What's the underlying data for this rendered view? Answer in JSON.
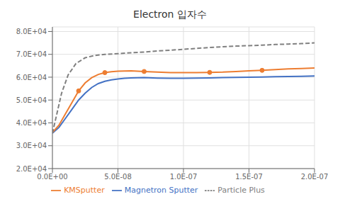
{
  "chart_data": {
    "type": "line",
    "title": "Electron 입자수",
    "xlim": [
      0,
      2e-07
    ],
    "ylim": [
      20000,
      82000
    ],
    "xticks": [
      {
        "value": 0,
        "label": "0.0E+00"
      },
      {
        "value": 5e-08,
        "label": "5.0E-08"
      },
      {
        "value": 1e-07,
        "label": "1.0E-07"
      },
      {
        "value": 1.5e-07,
        "label": "1.5E-07"
      },
      {
        "value": 2e-07,
        "label": "2.0E-07"
      }
    ],
    "yticks": [
      {
        "value": 20000,
        "label": "2.0E+04"
      },
      {
        "value": 30000,
        "label": "3.0E+04"
      },
      {
        "value": 40000,
        "label": "4.0E+04"
      },
      {
        "value": 50000,
        "label": "5.0E+04"
      },
      {
        "value": 60000,
        "label": "6.0E+04"
      },
      {
        "value": 70000,
        "label": "7.0E+04"
      },
      {
        "value": 80000,
        "label": "8.0E+04"
      }
    ],
    "grid": true,
    "legend": "bottom",
    "series": [
      {
        "name": "Magnetron Sputter",
        "color": "#4472c4",
        "line_style": "solid",
        "x": [
          0,
          5e-09,
          1e-08,
          1.5e-08,
          2e-08,
          2.5e-08,
          3e-08,
          3.5e-08,
          4e-08,
          4.5e-08,
          5e-08,
          5.5e-08,
          6e-08,
          7e-08,
          8e-08,
          9e-08,
          1e-07,
          1.1e-07,
          1.2e-07,
          1.3e-07,
          1.4e-07,
          1.5e-07,
          1.6e-07,
          1.7e-07,
          1.8e-07,
          1.9e-07,
          2e-07
        ],
        "values": [
          35500,
          38000,
          42000,
          46000,
          50000,
          53000,
          55500,
          57200,
          58200,
          58800,
          59200,
          59500,
          59700,
          59800,
          59600,
          59500,
          59500,
          59600,
          59700,
          59800,
          59900,
          60000,
          60100,
          60200,
          60300,
          60400,
          60500
        ]
      },
      {
        "name": "KMSputter",
        "color": "#ed7d31",
        "line_style": "solid",
        "marker": "circle",
        "x": [
          0,
          5e-09,
          1e-08,
          1.5e-08,
          2e-08,
          2.5e-08,
          3e-08,
          3.5e-08,
          4e-08,
          4.5e-08,
          5e-08,
          5.5e-08,
          6e-08,
          7e-08,
          8e-08,
          9e-08,
          1e-07,
          1.1e-07,
          1.2e-07,
          1.3e-07,
          1.4e-07,
          1.5e-07,
          1.6e-07,
          1.7e-07,
          1.8e-07,
          1.9e-07,
          2e-07
        ],
        "values": [
          35800,
          39000,
          44000,
          49000,
          54000,
          57500,
          59800,
          61200,
          62000,
          62400,
          62600,
          62700,
          62800,
          62500,
          62200,
          62000,
          62000,
          62000,
          62100,
          62200,
          62500,
          62800,
          63000,
          63300,
          63600,
          63800,
          64000
        ]
      },
      {
        "name": "Particle Plus",
        "color": "#808080",
        "line_style": "dashed",
        "x": [
          0,
          3e-09,
          7e-09,
          1.2e-08,
          1.8e-08,
          2.5e-08,
          3.2e-08,
          4e-08,
          5e-08,
          6e-08,
          7e-08,
          8e-08,
          9e-08,
          1e-07,
          1.1e-07,
          1.2e-07,
          1.3e-07,
          1.4e-07,
          1.5e-07,
          1.6e-07,
          1.7e-07,
          1.8e-07,
          1.9e-07,
          2e-07
        ],
        "values": [
          35500,
          43000,
          53000,
          61000,
          66000,
          68500,
          69500,
          70000,
          70300,
          70700,
          71000,
          71500,
          71800,
          72200,
          72600,
          73000,
          73300,
          73600,
          73800,
          74000,
          74300,
          74500,
          74700,
          75000
        ]
      }
    ]
  }
}
